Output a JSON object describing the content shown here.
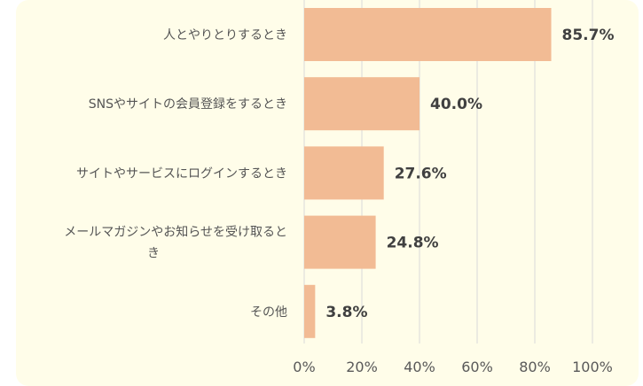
{
  "chart_data": {
    "type": "bar",
    "orientation": "horizontal",
    "categories": [
      [
        "人とやりとりするとき"
      ],
      [
        "SNSやサイトの会員登録をするとき"
      ],
      [
        "サイトやサービスにログインするとき"
      ],
      [
        "メールマガジンやお知らせを受け取ると",
        "き"
      ],
      [
        "その他"
      ]
    ],
    "values": [
      85.7,
      40.0,
      27.6,
      24.8,
      3.8
    ],
    "value_labels": [
      "85.7%",
      "40.0%",
      "27.6%",
      "24.8%",
      "3.8%"
    ],
    "xlim": [
      0,
      100
    ],
    "x_ticks": [
      0,
      20,
      40,
      60,
      80,
      100
    ],
    "x_tick_labels": [
      "0%",
      "20%",
      "40%",
      "60%",
      "80%",
      "100%"
    ],
    "bar_color": "#f2bb94",
    "grid": true,
    "title": "",
    "xlabel": "",
    "ylabel": ""
  }
}
